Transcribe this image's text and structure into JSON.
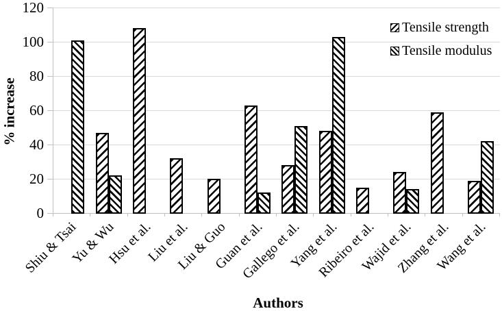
{
  "chart_data": {
    "type": "bar",
    "title": "",
    "xlabel": "Authors",
    "ylabel": "% increase",
    "ylim": [
      0,
      120
    ],
    "yticks": [
      0,
      20,
      40,
      60,
      80,
      100,
      120
    ],
    "grid": true,
    "legend_position": "top-right",
    "categories": [
      "Shiu & Tsai",
      "Yu & Wu",
      "Hsu et al.",
      "Liu et al.",
      "Liu & Guo",
      "Guan et al.",
      "Gallego et al.",
      "Yang et al.",
      "Ribeiro et al.",
      "Wajid et al.",
      "Zhang et al.",
      "Wang et al."
    ],
    "series": [
      {
        "name": "Tensile strength",
        "hatch": "/",
        "values": [
          null,
          47,
          108,
          32,
          20,
          63,
          28,
          48,
          15,
          24,
          59,
          19
        ]
      },
      {
        "name": "Tensile modulus",
        "hatch": "\\",
        "values": [
          101,
          22,
          null,
          null,
          null,
          12,
          51,
          103,
          null,
          14,
          null,
          42
        ]
      }
    ]
  },
  "colors": {
    "bar_fill": "#ffffff",
    "bar_edge": "#000000",
    "gridline": "#d9d9d9",
    "axis": "#bfbfbf",
    "text": "#000000",
    "background": "#ffffff"
  }
}
